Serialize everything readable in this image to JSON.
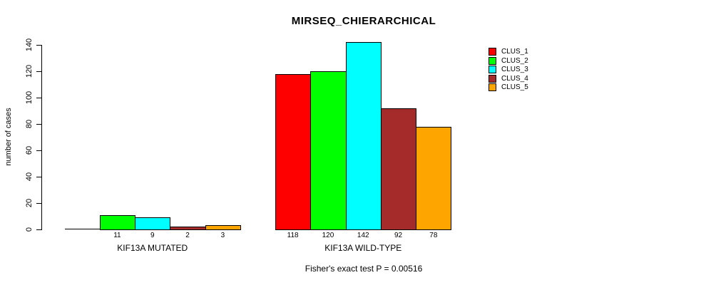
{
  "chart_data": {
    "type": "bar",
    "title": "MIRSEQ_CHIERARCHICAL",
    "ylabel": "number of cases",
    "footnote": "Fisher's exact test P = 0.00516",
    "categories": [
      "KIF13A MUTATED",
      "KIF13A WILD-TYPE"
    ],
    "series": [
      {
        "name": "CLUS_1",
        "color": "#FF0000",
        "values": [
          0,
          118
        ]
      },
      {
        "name": "CLUS_2",
        "color": "#00FF00",
        "values": [
          11,
          120
        ]
      },
      {
        "name": "CLUS_3",
        "color": "#00FFFF",
        "values": [
          9,
          142
        ]
      },
      {
        "name": "CLUS_4",
        "color": "#A52A2A",
        "values": [
          2,
          92
        ]
      },
      {
        "name": "CLUS_5",
        "color": "#FFA500",
        "values": [
          3,
          78
        ]
      }
    ],
    "bar_value_labels": {
      "KIF13A MUTATED": [
        "",
        "11",
        "9",
        "2",
        "3"
      ],
      "KIF13A WILD-TYPE": [
        "118",
        "120",
        "142",
        "92",
        "78"
      ]
    },
    "ylim": [
      0,
      140
    ],
    "ytick_step": 20,
    "yticks": [
      "0",
      "20",
      "40",
      "60",
      "80",
      "100",
      "120",
      "140"
    ],
    "grid": "off",
    "legend_position": "right",
    "axis_color": "#000000",
    "background_color": "#ffffff"
  }
}
